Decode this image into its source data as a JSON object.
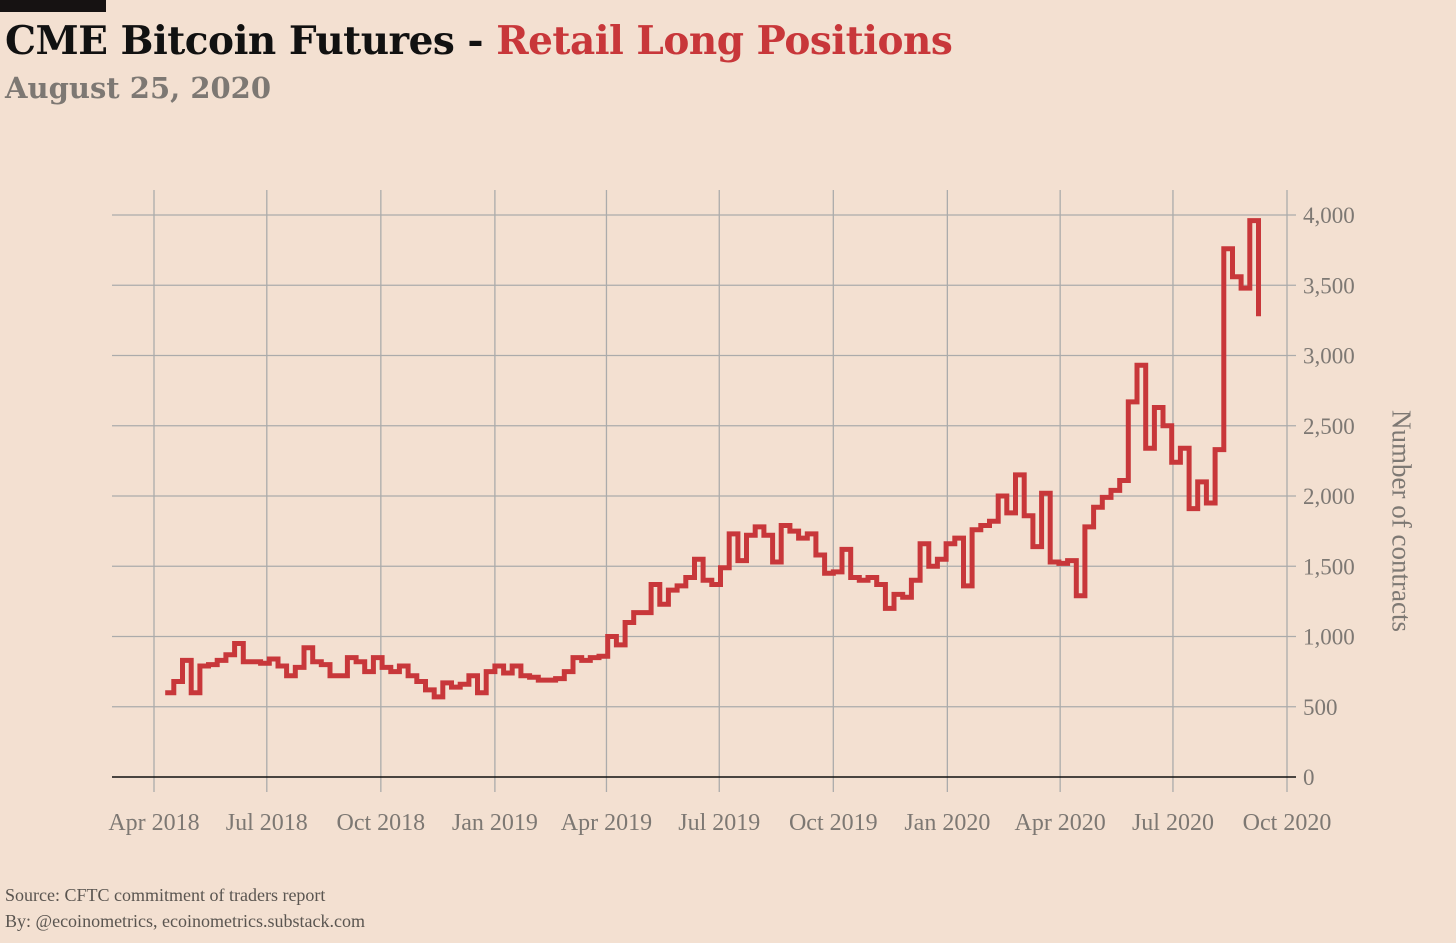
{
  "header": {
    "title_main": "CME Bitcoin Futures - ",
    "title_accent": "Retail Long Positions",
    "subtitle": "August 25, 2020"
  },
  "footer": {
    "source": "Source: CFTC commitment of traders report",
    "by": "By: @ecoinometrics, ecoinometrics.substack.com"
  },
  "colors": {
    "background": "#f3e0d1",
    "line": "#c8373a",
    "grid": "#aaaaaa",
    "title_accent": "#c8373a"
  },
  "chart_data": {
    "type": "line",
    "title": "CME Bitcoin Futures - Retail Long Positions",
    "subtitle": "August 25, 2020",
    "ylabel": "Number of contracts",
    "xlabel": "",
    "ylim": [
      0,
      4000
    ],
    "grid": true,
    "y_axis_position": "right",
    "x_ticks": [
      {
        "date": "2018-04-01",
        "label": "Apr 2018"
      },
      {
        "date": "2018-07-01",
        "label": "Jul 2018"
      },
      {
        "date": "2018-10-01",
        "label": "Oct 2018"
      },
      {
        "date": "2019-01-01",
        "label": "Jan 2019"
      },
      {
        "date": "2019-04-01",
        "label": "Apr 2019"
      },
      {
        "date": "2019-07-01",
        "label": "Jul 2019"
      },
      {
        "date": "2019-10-01",
        "label": "Oct 2019"
      },
      {
        "date": "2020-01-01",
        "label": "Jan 2020"
      },
      {
        "date": "2020-04-01",
        "label": "Apr 2020"
      },
      {
        "date": "2020-07-01",
        "label": "Jul 2020"
      },
      {
        "date": "2020-10-01",
        "label": "Oct 2020"
      }
    ],
    "y_ticks": [
      {
        "value": 0,
        "label": "0"
      },
      {
        "value": 500,
        "label": "500"
      },
      {
        "value": 1000,
        "label": "1,000"
      },
      {
        "value": 1500,
        "label": "1,500"
      },
      {
        "value": 2000,
        "label": "2,000"
      },
      {
        "value": 2500,
        "label": "2,500"
      },
      {
        "value": 3000,
        "label": "3,000"
      },
      {
        "value": 3500,
        "label": "3,500"
      },
      {
        "value": 4000,
        "label": "4,000"
      }
    ],
    "series": [
      {
        "step": true,
        "points": [
          [
            "2018-04-10",
            600
          ],
          [
            "2018-04-17",
            680
          ],
          [
            "2018-04-24",
            830
          ],
          [
            "2018-05-01",
            600
          ],
          [
            "2018-05-08",
            790
          ],
          [
            "2018-05-15",
            800
          ],
          [
            "2018-05-22",
            830
          ],
          [
            "2018-05-29",
            870
          ],
          [
            "2018-06-05",
            950
          ],
          [
            "2018-06-12",
            820
          ],
          [
            "2018-06-19",
            820
          ],
          [
            "2018-06-26",
            810
          ],
          [
            "2018-07-03",
            840
          ],
          [
            "2018-07-10",
            790
          ],
          [
            "2018-07-17",
            720
          ],
          [
            "2018-07-24",
            780
          ],
          [
            "2018-07-31",
            920
          ],
          [
            "2018-08-07",
            820
          ],
          [
            "2018-08-14",
            800
          ],
          [
            "2018-08-21",
            720
          ],
          [
            "2018-08-28",
            720
          ],
          [
            "2018-09-04",
            850
          ],
          [
            "2018-09-11",
            820
          ],
          [
            "2018-09-18",
            750
          ],
          [
            "2018-09-25",
            850
          ],
          [
            "2018-10-02",
            780
          ],
          [
            "2018-10-09",
            750
          ],
          [
            "2018-10-16",
            790
          ],
          [
            "2018-10-23",
            720
          ],
          [
            "2018-10-30",
            680
          ],
          [
            "2018-11-06",
            620
          ],
          [
            "2018-11-13",
            570
          ],
          [
            "2018-11-20",
            670
          ],
          [
            "2018-11-27",
            640
          ],
          [
            "2018-12-04",
            660
          ],
          [
            "2018-12-11",
            720
          ],
          [
            "2018-12-18",
            600
          ],
          [
            "2018-12-25",
            750
          ],
          [
            "2019-01-01",
            790
          ],
          [
            "2019-01-08",
            740
          ],
          [
            "2019-01-15",
            790
          ],
          [
            "2019-01-22",
            720
          ],
          [
            "2019-01-29",
            710
          ],
          [
            "2019-02-05",
            690
          ],
          [
            "2019-02-12",
            690
          ],
          [
            "2019-02-19",
            700
          ],
          [
            "2019-02-26",
            750
          ],
          [
            "2019-03-05",
            850
          ],
          [
            "2019-03-12",
            830
          ],
          [
            "2019-03-19",
            850
          ],
          [
            "2019-03-26",
            860
          ],
          [
            "2019-04-02",
            1000
          ],
          [
            "2019-04-09",
            940
          ],
          [
            "2019-04-16",
            1100
          ],
          [
            "2019-04-23",
            1170
          ],
          [
            "2019-04-30",
            1170
          ],
          [
            "2019-05-07",
            1370
          ],
          [
            "2019-05-14",
            1230
          ],
          [
            "2019-05-21",
            1330
          ],
          [
            "2019-05-28",
            1360
          ],
          [
            "2019-06-04",
            1420
          ],
          [
            "2019-06-11",
            1550
          ],
          [
            "2019-06-18",
            1400
          ],
          [
            "2019-06-25",
            1370
          ],
          [
            "2019-07-02",
            1490
          ],
          [
            "2019-07-09",
            1730
          ],
          [
            "2019-07-16",
            1540
          ],
          [
            "2019-07-23",
            1720
          ],
          [
            "2019-07-30",
            1780
          ],
          [
            "2019-08-06",
            1720
          ],
          [
            "2019-08-13",
            1530
          ],
          [
            "2019-08-20",
            1790
          ],
          [
            "2019-08-27",
            1750
          ],
          [
            "2019-09-03",
            1700
          ],
          [
            "2019-09-10",
            1730
          ],
          [
            "2019-09-17",
            1580
          ],
          [
            "2019-09-24",
            1450
          ],
          [
            "2019-10-01",
            1460
          ],
          [
            "2019-10-08",
            1620
          ],
          [
            "2019-10-15",
            1420
          ],
          [
            "2019-10-22",
            1400
          ],
          [
            "2019-10-29",
            1420
          ],
          [
            "2019-11-05",
            1370
          ],
          [
            "2019-11-12",
            1200
          ],
          [
            "2019-11-19",
            1300
          ],
          [
            "2019-11-26",
            1280
          ],
          [
            "2019-12-03",
            1400
          ],
          [
            "2019-12-10",
            1660
          ],
          [
            "2019-12-17",
            1500
          ],
          [
            "2019-12-24",
            1550
          ],
          [
            "2019-12-31",
            1660
          ],
          [
            "2020-01-07",
            1700
          ],
          [
            "2020-01-14",
            1360
          ],
          [
            "2020-01-21",
            1760
          ],
          [
            "2020-01-28",
            1790
          ],
          [
            "2020-02-04",
            1820
          ],
          [
            "2020-02-11",
            2000
          ],
          [
            "2020-02-18",
            1880
          ],
          [
            "2020-02-25",
            2150
          ],
          [
            "2020-03-03",
            1860
          ],
          [
            "2020-03-10",
            1640
          ],
          [
            "2020-03-17",
            2020
          ],
          [
            "2020-03-24",
            1530
          ],
          [
            "2020-03-31",
            1520
          ],
          [
            "2020-04-07",
            1540
          ],
          [
            "2020-04-14",
            1290
          ],
          [
            "2020-04-21",
            1780
          ],
          [
            "2020-04-28",
            1920
          ],
          [
            "2020-05-05",
            1990
          ],
          [
            "2020-05-12",
            2040
          ],
          [
            "2020-05-19",
            2110
          ],
          [
            "2020-05-26",
            2670
          ],
          [
            "2020-06-02",
            2930
          ],
          [
            "2020-06-09",
            2340
          ],
          [
            "2020-06-16",
            2630
          ],
          [
            "2020-06-23",
            2500
          ],
          [
            "2020-06-30",
            2240
          ],
          [
            "2020-07-07",
            2340
          ],
          [
            "2020-07-14",
            1910
          ],
          [
            "2020-07-21",
            2100
          ],
          [
            "2020-07-28",
            1950
          ],
          [
            "2020-08-04",
            2330
          ],
          [
            "2020-08-11",
            3760
          ],
          [
            "2020-08-18",
            3560
          ],
          [
            "2020-08-25",
            3480
          ],
          [
            "2020-09-01",
            3960
          ],
          [
            "2020-09-08",
            3280
          ]
        ]
      }
    ]
  }
}
